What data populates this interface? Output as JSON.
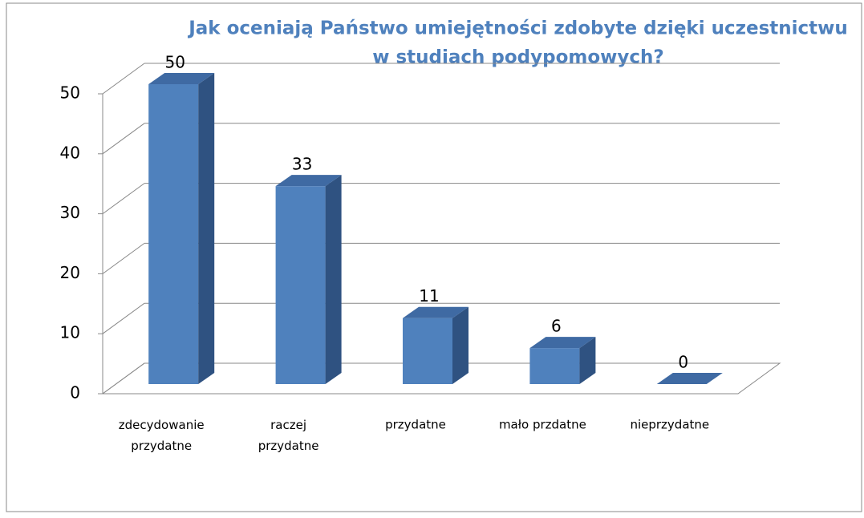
{
  "chart_data": {
    "type": "bar3d",
    "title": [
      "Jak oceniają Państwo umiejętności zdobyte dzięki uczestnictwu",
      "w studiach podypomowych?"
    ],
    "categories": [
      "zdecydowanie przydatne",
      "raczej przydatne",
      "przydatne",
      "mało przdatne",
      "nieprzydatne"
    ],
    "values": [
      50,
      33,
      11,
      6,
      0
    ],
    "color": "#4f81bd",
    "ylim": [
      0,
      50
    ],
    "yticks": [
      0,
      10,
      20,
      30,
      40,
      50
    ],
    "grid": true
  }
}
